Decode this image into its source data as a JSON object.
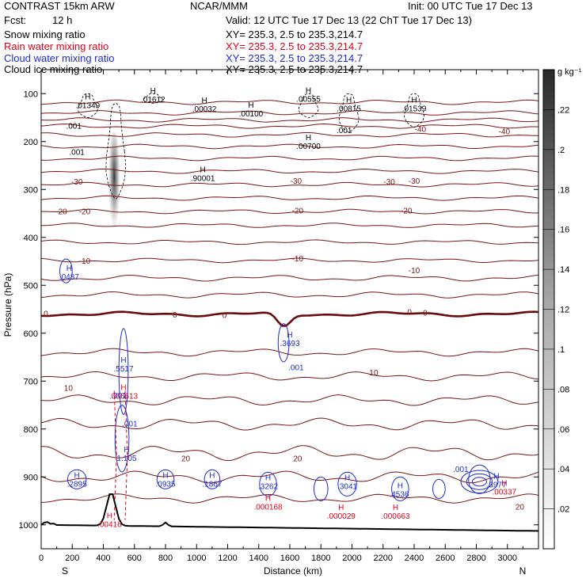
{
  "header": {
    "model": "CONTRAST 15km ARW",
    "center": "NCAR/MMM",
    "init": "Init: 00 UTC Tue 17 Dec 13",
    "fcst_label": "Fcst:",
    "fcst_value": "12 h",
    "valid": "Valid: 12 UTC Tue 17 Dec 13 (22 ChT Tue 17 Dec 13)",
    "fields": [
      {
        "name": "Snow mixing ratio",
        "xsec": "XY=  235.3,   2.5 to 235.3,214.7",
        "color": "#000000"
      },
      {
        "name": "Rain water mixing ratio",
        "xsec": "XY=  235.3,   2.5 to 235.3,214.7",
        "color": "#e0001c"
      },
      {
        "name": "Cloud water mixing ratio",
        "xsec": "XY=  235.3,   2.5 to 235.3,214.7",
        "color": "#1f2cd0"
      },
      {
        "name": "Cloud ice mixing ratio",
        "xsec": "XY=  235.3,   2.5 to 235.3,214.7",
        "color": "#000000"
      }
    ]
  },
  "colors": {
    "temperature": "#7a1414",
    "zero_isotherm": "#6b0a0a",
    "cloud_water": "#1f2cd0",
    "rain_water": "#e0001c",
    "cloud_ice": "#000000",
    "terrain": "#000000"
  },
  "chart_data": {
    "type": "contour",
    "xlabel": "Distance (km)",
    "ylabel": "Pressure (hPa)",
    "xlim": [
      0,
      3200
    ],
    "ylim": [
      1050,
      50
    ],
    "x_ticks": [
      0,
      200,
      400,
      600,
      800,
      1000,
      1200,
      1400,
      1600,
      1800,
      2000,
      2200,
      2400,
      2600,
      2800,
      3000
    ],
    "y_ticks": [
      100,
      200,
      300,
      400,
      500,
      600,
      700,
      800,
      900,
      1000
    ],
    "x_end_labels": {
      "left": "S",
      "right": "N"
    },
    "colorbar": {
      "unit": "g kg⁻¹",
      "min": 0,
      "max": 0.24,
      "ticks": [
        0.02,
        0.04,
        0.06,
        0.08,
        0.1,
        0.12,
        0.14,
        0.16,
        0.18,
        0.2,
        0.22
      ],
      "tick_labels": [
        ".02",
        ".04",
        ".06",
        ".08",
        ".1",
        ".12",
        ".14",
        ".16",
        ".18",
        ".2",
        ".22"
      ]
    },
    "temperature_labels": [
      {
        "x": 230,
        "p": 285,
        "text": "-30"
      },
      {
        "x": 1640,
        "p": 283,
        "text": "-30"
      },
      {
        "x": 2240,
        "p": 285,
        "text": "-30"
      },
      {
        "x": 2400,
        "p": 283,
        "text": "-30"
      },
      {
        "x": 2440,
        "p": 175,
        "text": "-40"
      },
      {
        "x": 2980,
        "p": 180,
        "text": "-40"
      },
      {
        "x": 130,
        "p": 347,
        "text": "-20"
      },
      {
        "x": 280,
        "p": 347,
        "text": "-20"
      },
      {
        "x": 1650,
        "p": 345,
        "text": "-20"
      },
      {
        "x": 2350,
        "p": 345,
        "text": "-20"
      },
      {
        "x": 280,
        "p": 450,
        "text": "-10"
      },
      {
        "x": 1650,
        "p": 445,
        "text": "-10"
      },
      {
        "x": 2400,
        "p": 470,
        "text": "-10"
      },
      {
        "x": 30,
        "p": 560,
        "text": "0"
      },
      {
        "x": 860,
        "p": 562,
        "text": "0"
      },
      {
        "x": 1180,
        "p": 563,
        "text": "0"
      },
      {
        "x": 2370,
        "p": 557,
        "text": "0"
      },
      {
        "x": 2470,
        "p": 558,
        "text": "0"
      },
      {
        "x": 175,
        "p": 715,
        "text": "10"
      },
      {
        "x": 2140,
        "p": 683,
        "text": "10"
      },
      {
        "x": 930,
        "p": 862,
        "text": "20"
      },
      {
        "x": 1650,
        "p": 862,
        "text": "20"
      },
      {
        "x": 3080,
        "p": 963,
        "text": "20"
      }
    ],
    "extrema": [
      {
        "kind": "H",
        "value": ".01349",
        "x": 300,
        "p": 115,
        "field": "cloud_ice"
      },
      {
        "kind": "H",
        "value": ".01612",
        "x": 720,
        "p": 103,
        "field": "cloud_ice"
      },
      {
        "kind": "H",
        "value": ".00032",
        "x": 1050,
        "p": 123,
        "field": "cloud_ice"
      },
      {
        "kind": "H",
        "value": ".00100",
        "x": 1350,
        "p": 133,
        "field": "cloud_ice"
      },
      {
        "kind": "H",
        "value": ".00555",
        "x": 1720,
        "p": 102,
        "field": "cloud_ice"
      },
      {
        "kind": "H",
        "value": ".00815",
        "x": 1980,
        "p": 122,
        "field": "cloud_ice"
      },
      {
        "kind": "H",
        "value": ".01539",
        "x": 2400,
        "p": 122,
        "field": "cloud_ice"
      },
      {
        "kind": "H",
        "value": ".00700",
        "x": 1720,
        "p": 200,
        "field": "cloud_ice"
      },
      {
        "kind": "H",
        "value": ".90001",
        "x": 1040,
        "p": 267,
        "field": "cloud_ice"
      },
      {
        "kind": "H",
        "value": ".0487",
        "x": 180,
        "p": 473,
        "field": "cloud_water"
      },
      {
        "kind": "H",
        "value": ".3693",
        "x": 1600,
        "p": 612,
        "field": "cloud_water"
      },
      {
        "kind": "H",
        "value": ".5517",
        "x": 530,
        "p": 665,
        "field": "cloud_water"
      },
      {
        "kind": "H",
        "value": ".2895",
        "x": 230,
        "p": 905,
        "field": "cloud_water"
      },
      {
        "kind": "H",
        "value": "1.105",
        "x": 550,
        "p": 852,
        "field": "cloud_water"
      },
      {
        "kind": "H",
        "value": ".0935",
        "x": 800,
        "p": 905,
        "field": "cloud_water"
      },
      {
        "kind": "H",
        "value": ".1867",
        "x": 1100,
        "p": 905,
        "field": "cloud_water"
      },
      {
        "kind": "H",
        "value": ".3262",
        "x": 1460,
        "p": 910,
        "field": "cloud_water"
      },
      {
        "kind": "H",
        "value": ".3041",
        "x": 1970,
        "p": 910,
        "field": "cloud_water"
      },
      {
        "kind": "H",
        "value": "4536",
        "x": 2310,
        "p": 927,
        "field": "cloud_water"
      },
      {
        "kind": "H",
        "value": ".3977",
        "x": 2930,
        "p": 907,
        "field": "cloud_water"
      },
      {
        "kind": "H",
        "value": ".006613",
        "x": 530,
        "p": 722,
        "field": "rain_water"
      },
      {
        "kind": "H",
        "value": ".00416",
        "x": 440,
        "p": 990,
        "field": "rain_water"
      },
      {
        "kind": "H",
        "value": ".000168",
        "x": 1460,
        "p": 953,
        "field": "rain_water"
      },
      {
        "kind": "H",
        "value": ".000029",
        "x": 1930,
        "p": 972,
        "field": "rain_water"
      },
      {
        "kind": "H",
        "value": ".000663",
        "x": 2280,
        "p": 972,
        "field": "rain_water"
      },
      {
        "kind": "H",
        "value": ".00337",
        "x": 2980,
        "p": 922,
        "field": "rain_water"
      }
    ],
    "contour_labels": [
      {
        "value": ".001",
        "x": 210,
        "p": 168,
        "field": "cloud_ice"
      },
      {
        "value": ".001",
        "x": 230,
        "p": 223,
        "field": "cloud_ice"
      },
      {
        "value": ".001",
        "x": 1950,
        "p": 177,
        "field": "cloud_ice"
      },
      {
        "value": ".001",
        "x": 1640,
        "p": 672,
        "field": "cloud_water"
      },
      {
        "value": ".001",
        "x": 570,
        "p": 790,
        "field": "cloud_water"
      },
      {
        "value": ".001",
        "x": 500,
        "p": 731,
        "field": "cloud_water"
      },
      {
        "value": ".001",
        "x": 2700,
        "p": 885,
        "field": "cloud_water"
      }
    ],
    "snow_max_g_per_kg": 0.22,
    "snow_core": {
      "x": 470,
      "p_top": 180,
      "p_bottom": 410
    }
  }
}
